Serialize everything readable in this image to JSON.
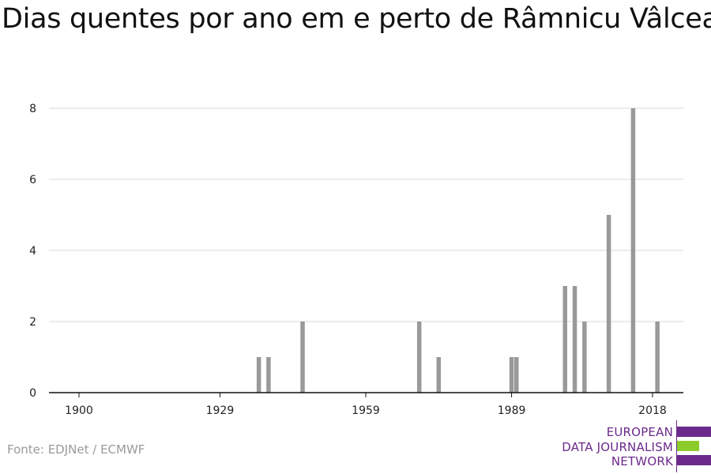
{
  "title": "Dias quentes por ano em e perto de Râmnicu Vâlcea",
  "source": "Fonte: EDJNet / ECMWF",
  "logo": {
    "lines": [
      "EUROPEAN",
      "DATA JOURNALISM",
      "NETWORK"
    ],
    "colors": {
      "purple": "#6b2a8c",
      "green": "#8ccc2a"
    }
  },
  "chart_data": {
    "type": "bar",
    "title": "Dias quentes por ano em e perto de Râmnicu Vâlcea",
    "xlabel": "",
    "ylabel": "",
    "x_ticks": [
      1900,
      1929,
      1959,
      1989,
      2018
    ],
    "y_ticks": [
      0,
      2,
      4,
      6,
      8
    ],
    "xlim": [
      1894,
      2021
    ],
    "ylim": [
      0,
      8.8
    ],
    "grid": true,
    "bar_color": "#999999",
    "x": [
      1937,
      1939,
      1946,
      1970,
      1974,
      1989,
      1990,
      2000,
      2002,
      2004,
      2009,
      2014,
      2019
    ],
    "values": [
      1,
      1,
      2,
      2,
      1,
      1,
      1,
      3,
      3,
      2,
      5,
      8,
      2
    ]
  }
}
